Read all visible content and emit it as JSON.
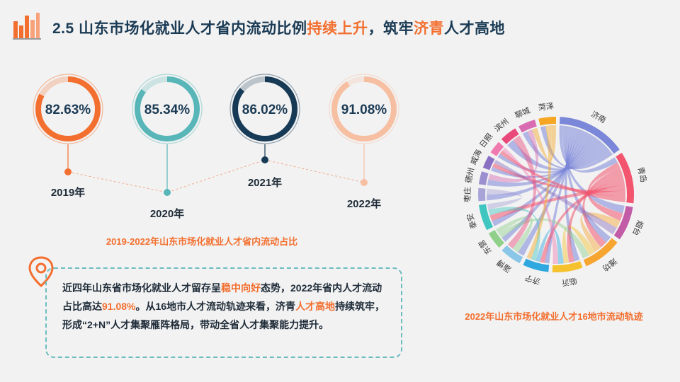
{
  "header": {
    "title_pre": "2.5 山东市场化就业人才省内流动比例",
    "title_hl1": "持续上升",
    "title_mid": "，筑牢",
    "title_hl2": "济青",
    "title_post": "人才高地"
  },
  "colors": {
    "orange": "#f36f2f",
    "teal": "#58b6b8",
    "navy": "#173a56",
    "peach": "#f7bfa2",
    "text_dark": "#1b3b55"
  },
  "chart_data": [
    {
      "type": "ring-timeline",
      "title": "2019-2022年山东市场化就业人才省内流动占比",
      "categories": [
        "2019年",
        "2020年",
        "2021年",
        "2022年"
      ],
      "values": [
        82.63,
        85.34,
        86.02,
        91.08
      ],
      "value_labels": [
        "82.63%",
        "85.34%",
        "86.02%",
        "91.08%"
      ],
      "colors": [
        "#f36f2f",
        "#58b6b8",
        "#173a56",
        "#f7bfa2"
      ]
    },
    {
      "type": "chord",
      "title": "2022年山东市场化就业人才16地市流动轨迹",
      "nodes": [
        "济南",
        "青岛",
        "烟台",
        "潍坊",
        "临沂",
        "济宁",
        "淄博",
        "东营",
        "泰安",
        "枣庄",
        "德州",
        "威海",
        "日照",
        "滨州",
        "聊城",
        "菏泽"
      ],
      "node_colors": [
        "#7b87d9",
        "#f3546e",
        "#c35ca7",
        "#f7a531",
        "#f5c22e",
        "#2fa8e0",
        "#8ac6e8",
        "#8fd08b",
        "#3fc6c0",
        "#a9a4d8",
        "#9b8fd0",
        "#8a6fc2",
        "#f07ab0",
        "#e8497a",
        "#d86bb2",
        "#f5a623"
      ]
    }
  ],
  "summary": {
    "p1": "近四年山东省市场化就业人才留存呈",
    "h1": "稳中向好",
    "p2": "态势，2022年省内人才流动占比高达",
    "h2": "91.08%",
    "p3": "。从16地市人才流动轨迹来看，济青",
    "h3": "人才高地",
    "p4": "持续筑牢，形成“2+N”人才集聚雁阵格局，带动全省人才集聚能力提升。"
  }
}
